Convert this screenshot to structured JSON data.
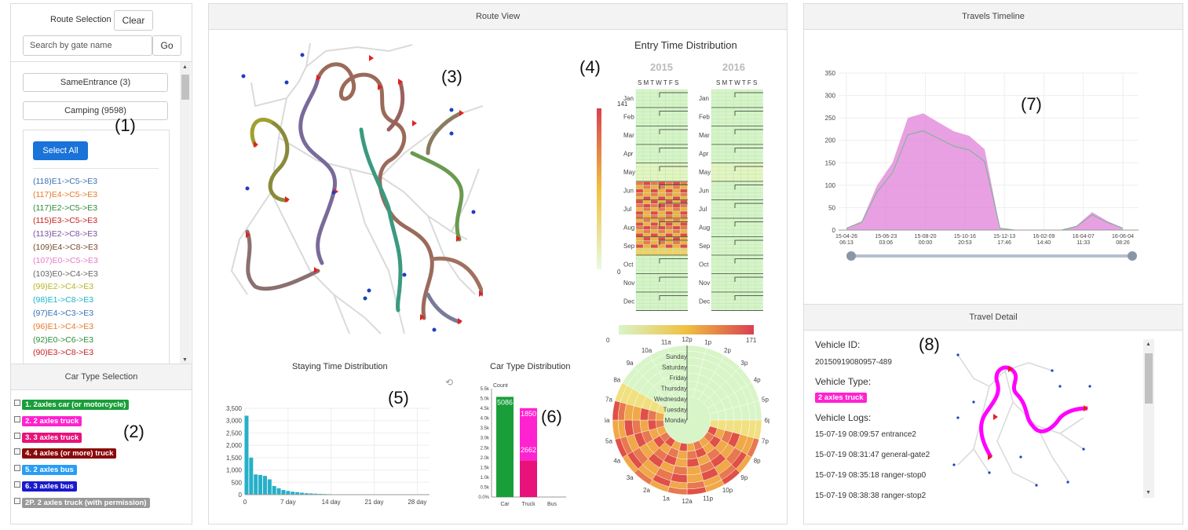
{
  "route_selection": {
    "title": "Route Selection",
    "clear_label": "Clear",
    "search_placeholder": "Search by gate name",
    "go_label": "Go",
    "groups": [
      {
        "label": "SameEntrance (3)"
      },
      {
        "label": "Camping (9598)"
      }
    ],
    "select_all_label": "Select All",
    "routes": [
      {
        "label": "(118)E1->C5->E3",
        "color": "#3a6fb5"
      },
      {
        "label": "(117)E4->C5->E3",
        "color": "#e6782a"
      },
      {
        "label": "(117)E2->C5->E3",
        "color": "#2e8b3a"
      },
      {
        "label": "(115)E3->C5->E3",
        "color": "#c81e1e"
      },
      {
        "label": "(113)E2->C8->E3",
        "color": "#7a4fa0"
      },
      {
        "label": "(109)E4->C8->E3",
        "color": "#7a4a30"
      },
      {
        "label": "(107)E0->C5->E3",
        "color": "#e67ac8"
      },
      {
        "label": "(103)E0->C4->E3",
        "color": "#666666"
      },
      {
        "label": "(99)E2->C4->E3",
        "color": "#b5b521"
      },
      {
        "label": "(98)E1->C8->E3",
        "color": "#19b5c8"
      },
      {
        "label": "(97)E4->C3->E3",
        "color": "#3a6fb5"
      },
      {
        "label": "(96)E1->C4->E3",
        "color": "#e6782a"
      },
      {
        "label": "(92)E0->C6->E3",
        "color": "#2e8b3a"
      },
      {
        "label": "(90)E3->C8->E3",
        "color": "#c81e1e"
      }
    ]
  },
  "car_type_selection": {
    "title": "Car Type Selection",
    "types": [
      {
        "label": "1. 2axles car (or motorcycle)",
        "color": "#1a9e3a"
      },
      {
        "label": "2. 2 axles truck",
        "color": "#ff22d0"
      },
      {
        "label": "3. 3 axles truck",
        "color": "#e8127a"
      },
      {
        "label": "4. 4 axles (or more) truck",
        "color": "#8b0a0a"
      },
      {
        "label": "5. 2 axles bus",
        "color": "#2a9df4"
      },
      {
        "label": "6. 3 axles bus",
        "color": "#1a1acc"
      },
      {
        "label": "2P. 2 axles truck (with permission)",
        "color": "#999999"
      }
    ]
  },
  "route_view": {
    "title": "Route View",
    "entry_time": {
      "title": "Entry Time Distribution",
      "years": [
        "2015",
        "2016"
      ],
      "weekdays": "S M T W T F S",
      "months": [
        "Jan",
        "Feb",
        "Mar",
        "Apr",
        "May",
        "Jun",
        "Jul",
        "Aug",
        "Sep",
        "Oct",
        "Nov",
        "Dec"
      ],
      "scale_max": "141",
      "scale_min": "0"
    },
    "radial": {
      "scale_min": "0",
      "scale_max": "171",
      "hours": [
        "12a",
        "1a",
        "2a",
        "3a",
        "4a",
        "5a",
        "6a",
        "7a",
        "8a",
        "9a",
        "10a",
        "11a",
        "12p",
        "1p",
        "2p",
        "3p",
        "4p",
        "5p",
        "6p",
        "7p",
        "8p",
        "9p",
        "10p",
        "11p"
      ],
      "days": [
        "Sunday",
        "Saturday",
        "Friday",
        "Thursday",
        "Wednesday",
        "Tuesday",
        "Monday"
      ]
    },
    "staying_title": "Staying Time Distribution",
    "car_type_title": "Car Type Distribution"
  },
  "chart_data": [
    {
      "type": "bar",
      "title": "Staying Time Distribution",
      "x": [
        0.25,
        1.0,
        1.75,
        2.5,
        3.25,
        4.0,
        4.75,
        5.5,
        6.25,
        7.0,
        7.75,
        8.5,
        9.25,
        10.0,
        10.75,
        11.5,
        12.25,
        13.0,
        13.75,
        14.5
      ],
      "values": [
        3200,
        1500,
        820,
        800,
        760,
        620,
        350,
        260,
        190,
        150,
        120,
        100,
        80,
        60,
        50,
        40,
        30,
        25,
        20,
        15
      ],
      "xticks": [
        "0",
        "7 day",
        "14 day",
        "21 day",
        "28 day"
      ],
      "yticks": [
        "0",
        "500",
        "1,000",
        "1,500",
        "2,000",
        "2,500",
        "3,000",
        "3,500"
      ],
      "ylim": [
        0,
        3500
      ],
      "xlim": [
        0,
        30
      ]
    },
    {
      "type": "bar",
      "title": "Car Type Distribution",
      "categories": [
        "Car",
        "Truck",
        "Bus"
      ],
      "ylabel": "Count",
      "ylim": [
        0,
        5500
      ],
      "yticks": [
        "0.0%",
        "0.5k",
        "1.0k",
        "1.5k",
        "2.0k",
        "2.5k",
        "3.0k",
        "3.5k",
        "4.0k",
        "4.5k",
        "5.0k",
        "5.5k"
      ],
      "series": [
        {
          "name": "",
          "values": [
            5086,
            1850,
            0
          ],
          "colors": [
            "#1a9e3a",
            "#e8127a",
            "#2a9df4"
          ]
        },
        {
          "name": "",
          "values": [
            0,
            2662,
            0
          ],
          "colors": [
            "#ff22d0",
            "#ff22d0",
            "#ff22d0"
          ]
        }
      ],
      "labels": [
        "5086",
        "1850",
        "2662"
      ]
    },
    {
      "type": "area",
      "title": "Travels Timeline",
      "x": [
        "15-04-26",
        "15-05-12",
        "15-05-28",
        "15-06-13",
        "15-06-29",
        "15-07-15",
        "15-07-31",
        "15-08-16",
        "15-09-01",
        "15-09-17",
        "15-10-03",
        "15-10-16",
        "15-12-13",
        "16-02-09",
        "16-04-07",
        "16-04-20",
        "16-05-06",
        "16-05-22",
        "16-06-04"
      ],
      "values": [
        5,
        20,
        100,
        150,
        250,
        260,
        240,
        220,
        210,
        180,
        5,
        0,
        0,
        0,
        0,
        10,
        40,
        20,
        5
      ],
      "ylim": [
        0,
        350
      ],
      "yticks": [
        "0",
        "50",
        "100",
        "150",
        "200",
        "250",
        "300",
        "350"
      ],
      "xticks": [
        "15-04-26 06:13",
        "15-06-23 03:06",
        "15-08-20 00:00",
        "15-10-16 20:53",
        "15-12-13 17:46",
        "16-02-09 14:40",
        "16-04-07 11:33",
        "16-06-04 08:26"
      ]
    }
  ],
  "timeline": {
    "title": "Travels Timeline"
  },
  "detail": {
    "title": "Travel Detail",
    "vehicle_id_label": "Vehicle ID:",
    "vehicle_id": "20150919080957-489",
    "vehicle_type_label": "Vehicle Type:",
    "vehicle_type": "2 axles truck",
    "logs_label": "Vehicle Logs:",
    "logs": [
      "15-07-19 08:09:57 entrance2",
      "15-07-19 08:31:47 general-gate2",
      "15-07-19 08:35:18 ranger-stop0",
      "15-07-19 08:38:38 ranger-stop2"
    ]
  },
  "labels": [
    "(1)",
    "(2)",
    "(3)",
    "(4)",
    "(5)",
    "(6)",
    "(7)",
    "(8)"
  ]
}
